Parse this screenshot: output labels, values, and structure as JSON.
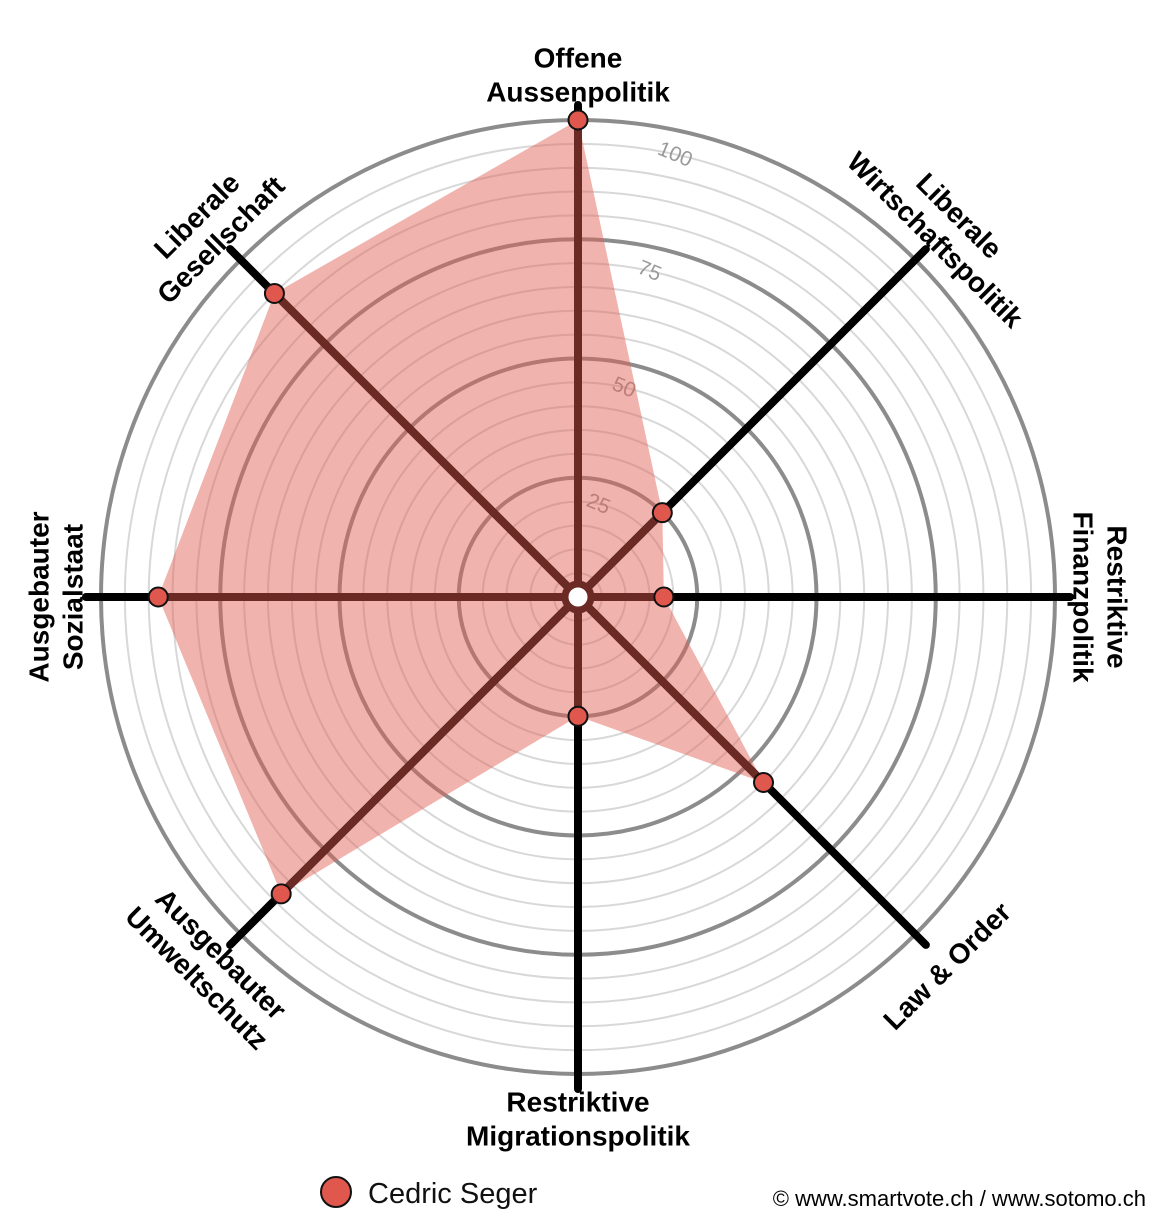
{
  "chart_data": {
    "type": "radar",
    "axes": [
      {
        "label": [
          "Offene",
          "Aussenpolitik"
        ]
      },
      {
        "label": [
          "Liberale",
          "Wirtschaftspolitik"
        ]
      },
      {
        "label": [
          "Restriktive",
          "Finanzpolitik"
        ]
      },
      {
        "label": [
          "Law & Order"
        ]
      },
      {
        "label": [
          "Restriktive",
          "Migrationspolitik"
        ]
      },
      {
        "label": [
          "Ausgebauter",
          "Umweltschutz"
        ]
      },
      {
        "label": [
          "Ausgebauter",
          "Sozialstaat"
        ]
      },
      {
        "label": [
          "Liberale",
          "Gesellschaft"
        ]
      }
    ],
    "series": [
      {
        "name": "Cedric Seger",
        "values": [
          100,
          25,
          18,
          55,
          25,
          88,
          88,
          90
        ]
      }
    ],
    "rlim": [
      0,
      100
    ],
    "rticks": [
      25,
      50,
      75,
      100
    ],
    "minor_step": 5,
    "colors": {
      "fill": "#e06055",
      "point": "#e0574e",
      "axis": "#000000",
      "axis_inside": "#6b2a24",
      "major_ring": "#8c8c8c",
      "minor_ring": "#d8d8d8"
    }
  },
  "legend": {
    "label": "Cedric Seger"
  },
  "credit": "© www.smartvote.ch / www.sotomo.ch"
}
